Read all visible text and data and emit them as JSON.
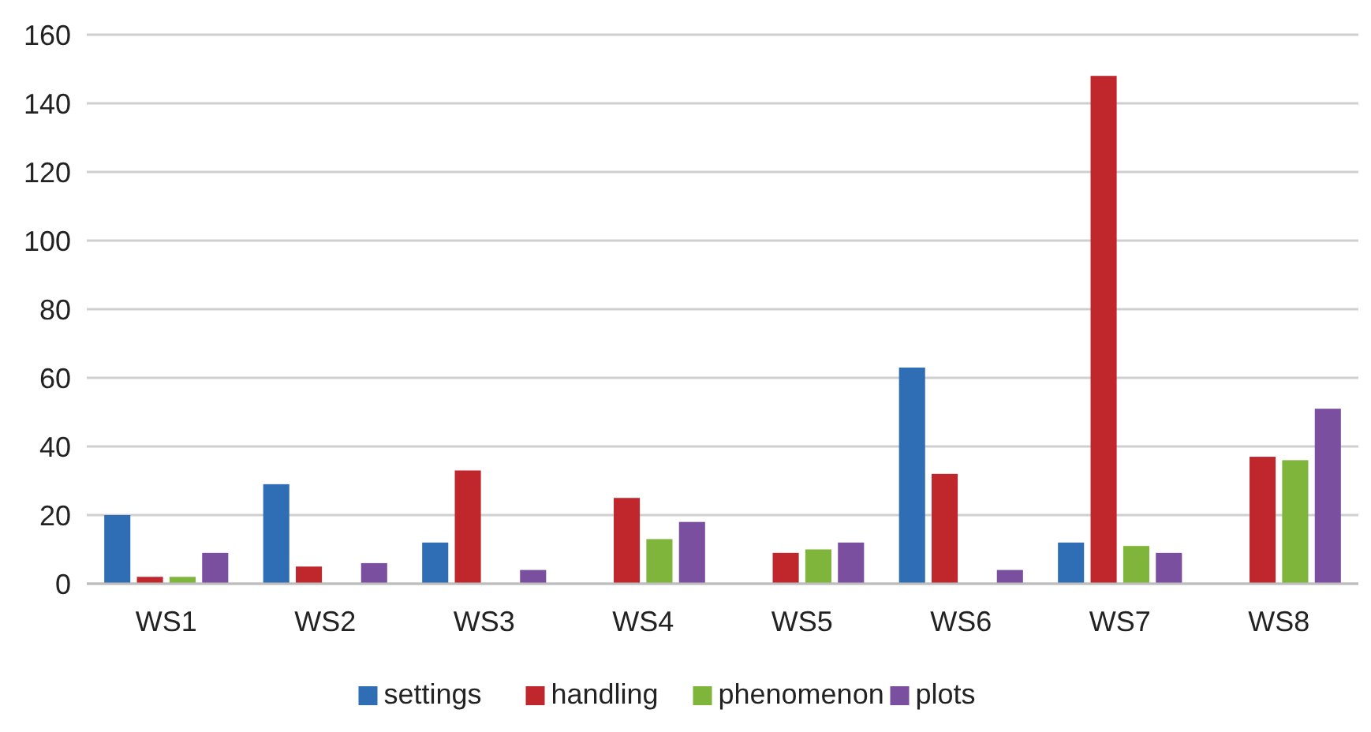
{
  "chart_data": {
    "type": "bar",
    "categories": [
      "WS1",
      "WS2",
      "WS3",
      "WS4",
      "WS5",
      "WS6",
      "WS7",
      "WS8"
    ],
    "series": [
      {
        "name": "settings",
        "color": "#2f6db5",
        "values": [
          20,
          29,
          12,
          0,
          0,
          63,
          12,
          0
        ]
      },
      {
        "name": "handling",
        "color": "#c0272d",
        "values": [
          2,
          5,
          33,
          25,
          9,
          32,
          148,
          37
        ]
      },
      {
        "name": "phenomenon",
        "color": "#7fb53a",
        "values": [
          2,
          0,
          0,
          13,
          10,
          0,
          11,
          36
        ]
      },
      {
        "name": "plots",
        "color": "#7b4fa0",
        "values": [
          9,
          6,
          4,
          18,
          12,
          4,
          9,
          51
        ]
      }
    ],
    "ylim": [
      0,
      160
    ],
    "yticks": [
      0,
      20,
      40,
      60,
      80,
      100,
      120,
      140,
      160
    ],
    "grid": "y",
    "legend": "bottom"
  }
}
